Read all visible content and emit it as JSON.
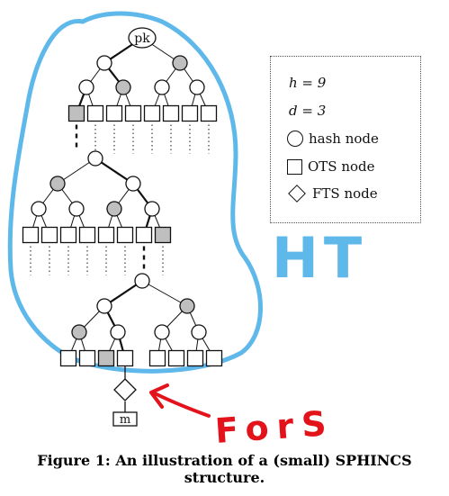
{
  "figure": {
    "caption": "Figure 1: An illustration of a (small) SPHINCS structure.",
    "root_label": "pk",
    "message_label": "m"
  },
  "legend": {
    "h_param": "h = 9",
    "d_param": "d = 3",
    "hash_node": "hash node",
    "ots_node": "OTS node",
    "fts_node": "FTS node"
  },
  "annotations": {
    "ht_label": "HT",
    "fors_label": "ForS"
  },
  "colors": {
    "node_fill": "#ffffff",
    "highlight_fill": "#bfbfbf",
    "stroke": "#111111",
    "annotation_blue": "#5fb8ea",
    "annotation_red": "#e3131b"
  }
}
